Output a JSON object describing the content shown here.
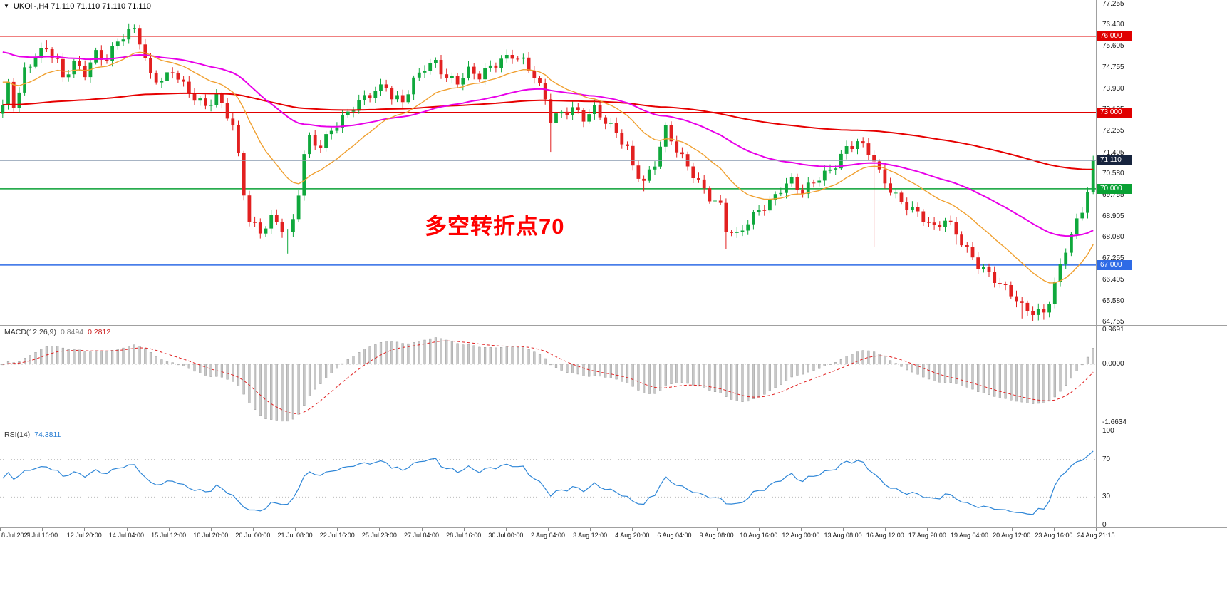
{
  "header": {
    "dropdown_icon": "▼",
    "title": "UKOil-,H4 71.110 71.110 71.110 71.110"
  },
  "annotation": {
    "text": "多空转折点70",
    "color": "#FF0000"
  },
  "price_axis": {
    "ticks": [
      "77.255",
      "76.430",
      "75.605",
      "74.755",
      "73.930",
      "73.105",
      "72.255",
      "71.405",
      "70.580",
      "69.755",
      "68.905",
      "68.080",
      "67.255",
      "66.405",
      "65.580",
      "64.755"
    ]
  },
  "levels": [
    {
      "value": 76.0,
      "label": "76.000",
      "color": "#e00000"
    },
    {
      "value": 73.0,
      "label": "73.000",
      "color": "#e00000"
    },
    {
      "value": 70.0,
      "label": "70.000",
      "color": "#09a134"
    },
    {
      "value": 67.0,
      "label": "67.000",
      "color": "#2e6be6"
    }
  ],
  "current_price": {
    "value": 71.11,
    "label": "71.110",
    "badge_bg": "#17243e",
    "line_color": "#8a9bb0"
  },
  "macd_panel": {
    "label": "MACD(12,26,9)",
    "value_main": "0.8494",
    "value_signal": "0.2812",
    "axis": [
      "0.9691",
      "0.0000",
      "-1.6634"
    ],
    "range": [
      -1.6634,
      0.9691
    ]
  },
  "rsi_panel": {
    "label": "RSI(14)",
    "value": "74.3811",
    "axis": [
      "100",
      "70",
      "30",
      "0"
    ],
    "levels": [
      70,
      30
    ],
    "range": [
      0,
      100
    ]
  },
  "time_axis": {
    "labels": [
      "8 Jul 2021",
      "9 Jul 16:00",
      "12 Jul 20:00",
      "14 Jul 04:00",
      "15 Jul 12:00",
      "16 Jul 20:00",
      "20 Jul 00:00",
      "21 Jul 08:00",
      "22 Jul 16:00",
      "25 Jul 23:00",
      "27 Jul 04:00",
      "28 Jul 16:00",
      "30 Jul 00:00",
      "2 Aug 04:00",
      "3 Aug 12:00",
      "4 Aug 20:00",
      "6 Aug 04:00",
      "9 Aug 08:00",
      "10 Aug 16:00",
      "12 Aug 00:00",
      "13 Aug 08:00",
      "16 Aug 12:00",
      "17 Aug 20:00",
      "19 Aug 04:00",
      "20 Aug 12:00",
      "23 Aug 16:00",
      "24 Aug 21:15"
    ]
  },
  "colors": {
    "candle_up": "#0fa83c",
    "candle_down": "#e22020",
    "macd_hist": "#c8c8c8",
    "macd_hist_edge": "#8f8f8f",
    "macd_signal": "#e02020",
    "rsi_line": "#2e86d7",
    "grid_border": "#a0a0a0"
  },
  "chart_data": {
    "type": "candlestick+indicators",
    "symbol": "UKOil-",
    "timeframe": "H4",
    "bars": 200,
    "price_range": [
      64.755,
      77.255
    ],
    "last_close": 71.11,
    "close_waypoints": [
      [
        0,
        73.2
      ],
      [
        1,
        74.1
      ],
      [
        2,
        73.3
      ],
      [
        3,
        73.7
      ],
      [
        4,
        74.6
      ],
      [
        6,
        75.2
      ],
      [
        8,
        75.6
      ],
      [
        10,
        75.0
      ],
      [
        11,
        74.4
      ],
      [
        13,
        74.9
      ],
      [
        15,
        74.5
      ],
      [
        17,
        75.3
      ],
      [
        19,
        75.1
      ],
      [
        21,
        75.9
      ],
      [
        24,
        76.3
      ],
      [
        25,
        75.8
      ],
      [
        26,
        75.0
      ],
      [
        27,
        74.4
      ],
      [
        29,
        74.2
      ],
      [
        31,
        74.7
      ],
      [
        33,
        74.1
      ],
      [
        35,
        73.6
      ],
      [
        37,
        73.2
      ],
      [
        39,
        73.6
      ],
      [
        41,
        72.9
      ],
      [
        42,
        72.5
      ],
      [
        43,
        71.3
      ],
      [
        44,
        69.9
      ],
      [
        45,
        68.8
      ],
      [
        47,
        68.3
      ],
      [
        49,
        68.8
      ],
      [
        51,
        68.4
      ],
      [
        52,
        68.2
      ],
      [
        53,
        68.7
      ],
      [
        54,
        69.9
      ],
      [
        55,
        71.4
      ],
      [
        56,
        72.0
      ],
      [
        58,
        71.7
      ],
      [
        60,
        72.3
      ],
      [
        62,
        72.7
      ],
      [
        64,
        73.2
      ],
      [
        66,
        73.6
      ],
      [
        68,
        73.9
      ],
      [
        70,
        74.1
      ],
      [
        71,
        73.6
      ],
      [
        73,
        73.4
      ],
      [
        75,
        74.2
      ],
      [
        77,
        74.8
      ],
      [
        79,
        75.0
      ],
      [
        81,
        74.4
      ],
      [
        83,
        74.2
      ],
      [
        85,
        74.6
      ],
      [
        87,
        74.4
      ],
      [
        89,
        74.8
      ],
      [
        91,
        75.1
      ],
      [
        93,
        75.3
      ],
      [
        95,
        75.0
      ],
      [
        97,
        74.4
      ],
      [
        99,
        73.5
      ],
      [
        100,
        72.7
      ],
      [
        102,
        73.0
      ],
      [
        104,
        73.2
      ],
      [
        106,
        72.8
      ],
      [
        108,
        73.1
      ],
      [
        110,
        72.6
      ],
      [
        112,
        72.2
      ],
      [
        114,
        71.6
      ],
      [
        115,
        70.9
      ],
      [
        117,
        70.3
      ],
      [
        119,
        71.0
      ],
      [
        121,
        72.3
      ],
      [
        123,
        71.5
      ],
      [
        125,
        70.9
      ],
      [
        127,
        70.3
      ],
      [
        129,
        69.7
      ],
      [
        131,
        69.3
      ],
      [
        132,
        68.4
      ],
      [
        134,
        68.1
      ],
      [
        136,
        68.7
      ],
      [
        138,
        69.2
      ],
      [
        140,
        69.5
      ],
      [
        142,
        70.0
      ],
      [
        144,
        70.3
      ],
      [
        146,
        69.8
      ],
      [
        148,
        70.3
      ],
      [
        150,
        70.6
      ],
      [
        152,
        71.0
      ],
      [
        154,
        71.6
      ],
      [
        156,
        71.8
      ],
      [
        158,
        71.4
      ],
      [
        159,
        71.1
      ],
      [
        160,
        70.6
      ],
      [
        162,
        70.0
      ],
      [
        164,
        69.5
      ],
      [
        166,
        69.2
      ],
      [
        168,
        68.8
      ],
      [
        170,
        68.4
      ],
      [
        172,
        68.8
      ],
      [
        174,
        68.3
      ],
      [
        176,
        67.6
      ],
      [
        178,
        67.0
      ],
      [
        180,
        66.6
      ],
      [
        182,
        66.2
      ],
      [
        184,
        65.9
      ],
      [
        186,
        65.4
      ],
      [
        188,
        65.2
      ],
      [
        190,
        65.1
      ],
      [
        191,
        65.6
      ],
      [
        192,
        66.2
      ],
      [
        193,
        66.9
      ],
      [
        194,
        67.6
      ],
      [
        195,
        68.2
      ],
      [
        196,
        68.7
      ],
      [
        197,
        69.2
      ],
      [
        198,
        70.0
      ],
      [
        199,
        71.11
      ]
    ],
    "special_wicks": {
      "8": {
        "high": 75.85
      },
      "23": {
        "high": 76.38
      },
      "24": {
        "high": 76.43
      },
      "52": {
        "low": 67.45
      },
      "100": {
        "low": 71.45
      },
      "117": {
        "low": 69.9
      },
      "132": {
        "low": 67.62
      },
      "159": {
        "low": 67.7
      },
      "174": {
        "low": 67.8
      },
      "186": {
        "low": 64.9
      },
      "188": {
        "low": 64.8
      },
      "190": {
        "low": 64.85
      },
      "199": {
        "high": 71.3
      }
    },
    "moving_averages": [
      {
        "name": "slow-red",
        "period": 200,
        "seed": 73.3,
        "color": "#e60000",
        "width": 2
      },
      {
        "name": "mid-magenta",
        "period": 55,
        "seed": 75.45,
        "color": "#e800e8",
        "width": 2
      },
      {
        "name": "fast-orange",
        "period": 18,
        "seed": 74.3,
        "color": "#f0a030",
        "width": 1.4
      }
    ],
    "macd": {
      "fast": 12,
      "slow": 26,
      "signal": 9,
      "current": 0.8494,
      "current_signal": 0.2812
    },
    "rsi": {
      "period": 14,
      "current": 74.3811
    }
  }
}
